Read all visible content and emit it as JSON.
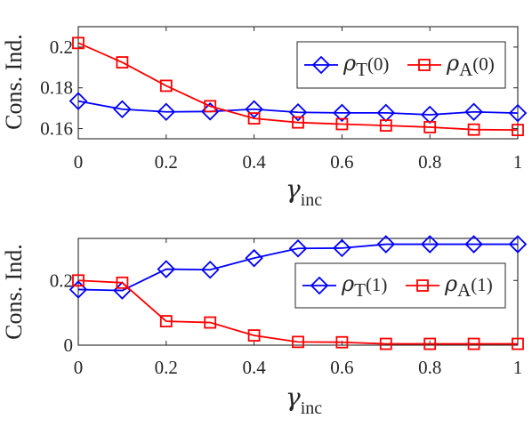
{
  "chart_data": [
    {
      "type": "line",
      "ylabel": "Cons. Ind.",
      "xlabel_main": "γ",
      "xlabel_sub": "inc",
      "x": [
        0,
        0.1,
        0.2,
        0.3,
        0.4,
        0.5,
        0.6,
        0.7,
        0.8,
        0.9,
        1
      ],
      "xticks": [
        "0",
        "0.2",
        "0.4",
        "0.6",
        "0.8",
        "1"
      ],
      "yticks": [
        "0.16",
        "0.18",
        "0.2"
      ],
      "xlim": [
        0,
        1
      ],
      "ylim": [
        0.155,
        0.21
      ],
      "legend_position": "top-right",
      "series": [
        {
          "name_main": "ρ",
          "name_sub": "T",
          "name_arg": "(0)",
          "color": "#0000ff",
          "marker": "diamond",
          "values": [
            0.1735,
            0.1695,
            0.1682,
            0.1684,
            0.1695,
            0.168,
            0.1677,
            0.1677,
            0.1668,
            0.1682,
            0.1676
          ]
        },
        {
          "name_main": "ρ",
          "name_sub": "A",
          "name_arg": "(0)",
          "color": "#ff0000",
          "marker": "square",
          "values": [
            0.202,
            0.1925,
            0.181,
            0.171,
            0.165,
            0.163,
            0.1622,
            0.1615,
            0.1607,
            0.1595,
            0.1593
          ]
        }
      ]
    },
    {
      "type": "line",
      "ylabel": "Cons. Ind.",
      "xlabel_main": "γ",
      "xlabel_sub": "inc",
      "x": [
        0,
        0.1,
        0.2,
        0.3,
        0.4,
        0.5,
        0.6,
        0.7,
        0.8,
        0.9,
        1
      ],
      "xticks": [
        "0",
        "0.2",
        "0.4",
        "0.6",
        "0.8",
        "1"
      ],
      "yticks": [
        "0",
        "0.2"
      ],
      "xlim": [
        0,
        1
      ],
      "ylim": [
        0,
        0.33
      ],
      "legend_position": "right",
      "series": [
        {
          "name_main": "ρ",
          "name_sub": "T",
          "name_arg": "(1)",
          "color": "#0000ff",
          "marker": "diamond",
          "values": [
            0.172,
            0.169,
            0.235,
            0.233,
            0.269,
            0.299,
            0.3,
            0.312,
            0.312,
            0.312,
            0.312
          ]
        },
        {
          "name_main": "ρ",
          "name_sub": "A",
          "name_arg": "(1)",
          "color": "#ff0000",
          "marker": "square",
          "values": [
            0.2,
            0.193,
            0.074,
            0.07,
            0.03,
            0.01,
            0.009,
            0.004,
            0.004,
            0.004,
            0.004
          ]
        }
      ]
    }
  ]
}
